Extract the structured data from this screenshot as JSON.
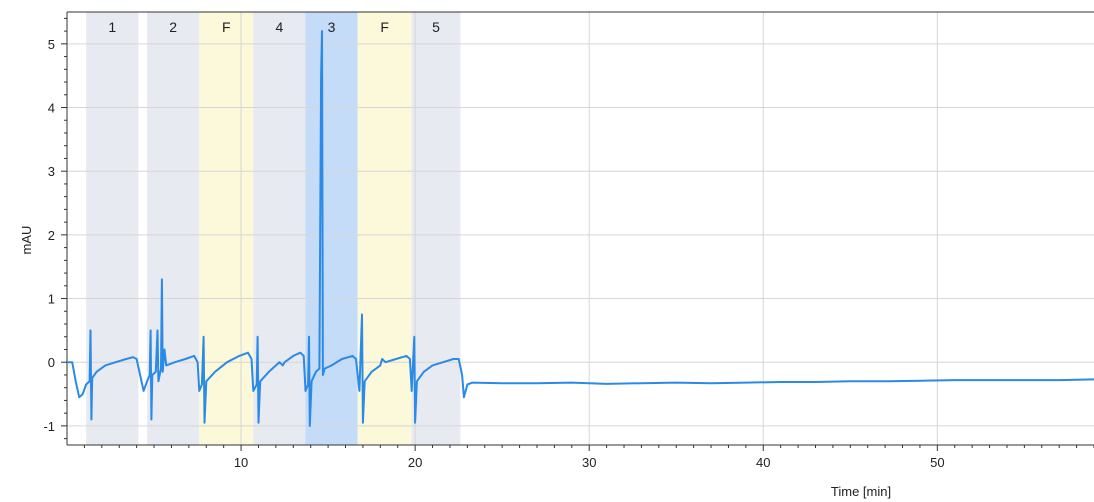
{
  "chart_data": {
    "type": "line",
    "xlabel": "Time [min]",
    "ylabel": "mAU",
    "xlim": [
      0,
      59
    ],
    "ylim": [
      -1.3,
      5.5
    ],
    "x_ticks": [
      10,
      20,
      30,
      40,
      50
    ],
    "y_ticks": [
      -1,
      0,
      1,
      2,
      3,
      4,
      5
    ],
    "grid": true,
    "colors": {
      "trace": "#2b8ae6",
      "region_gray": "#e8eaf2",
      "region_yellow": "#fbf9d9",
      "region_blue": "#c4dcf7",
      "grid": "#d6d6d6"
    },
    "regions": [
      {
        "label": "1",
        "x0": 1.1,
        "x1": 4.1,
        "color": "gray"
      },
      {
        "label": "2",
        "x0": 4.6,
        "x1": 7.6,
        "color": "gray"
      },
      {
        "label": "F",
        "x0": 7.6,
        "x1": 10.7,
        "color": "yellow"
      },
      {
        "label": "4",
        "x0": 10.7,
        "x1": 13.7,
        "color": "gray"
      },
      {
        "label": "3",
        "x0": 13.7,
        "x1": 16.7,
        "color": "blue"
      },
      {
        "label": "F",
        "x0": 16.7,
        "x1": 19.8,
        "color": "yellow"
      },
      {
        "label": "5",
        "x0": 19.8,
        "x1": 22.6,
        "color": "gray"
      }
    ],
    "series": [
      {
        "points": [
          [
            0.0,
            0.0
          ],
          [
            0.3,
            0.0
          ],
          [
            0.5,
            -0.3
          ],
          [
            0.7,
            -0.55
          ],
          [
            0.9,
            -0.5
          ],
          [
            1.1,
            -0.35
          ],
          [
            1.3,
            -0.3
          ],
          [
            1.35,
            0.5
          ],
          [
            1.4,
            -0.9
          ],
          [
            1.45,
            -0.25
          ],
          [
            1.7,
            -0.15
          ],
          [
            2.2,
            -0.05
          ],
          [
            2.8,
            0.0
          ],
          [
            3.4,
            0.05
          ],
          [
            3.8,
            0.08
          ],
          [
            4.0,
            0.05
          ],
          [
            4.2,
            -0.2
          ],
          [
            4.4,
            -0.45
          ],
          [
            4.6,
            -0.3
          ],
          [
            4.75,
            -0.2
          ],
          [
            4.8,
            0.5
          ],
          [
            4.85,
            -0.9
          ],
          [
            4.9,
            -0.2
          ],
          [
            5.1,
            -0.15
          ],
          [
            5.2,
            0.5
          ],
          [
            5.25,
            -0.3
          ],
          [
            5.4,
            -0.1
          ],
          [
            5.45,
            1.3
          ],
          [
            5.5,
            -0.15
          ],
          [
            5.6,
            0.2
          ],
          [
            5.7,
            -0.05
          ],
          [
            6.2,
            0.0
          ],
          [
            6.8,
            0.05
          ],
          [
            7.3,
            0.1
          ],
          [
            7.5,
            0.0
          ],
          [
            7.6,
            -0.45
          ],
          [
            7.75,
            -0.35
          ],
          [
            7.85,
            0.4
          ],
          [
            7.9,
            -0.95
          ],
          [
            8.0,
            -0.3
          ],
          [
            8.5,
            -0.15
          ],
          [
            9.2,
            0.0
          ],
          [
            9.9,
            0.1
          ],
          [
            10.4,
            0.15
          ],
          [
            10.6,
            0.05
          ],
          [
            10.7,
            -0.45
          ],
          [
            10.9,
            -0.35
          ],
          [
            10.95,
            0.4
          ],
          [
            11.0,
            -0.95
          ],
          [
            11.1,
            -0.3
          ],
          [
            11.6,
            -0.15
          ],
          [
            12.2,
            0.0
          ],
          [
            12.4,
            -0.05
          ],
          [
            12.5,
            0.0
          ],
          [
            13.0,
            0.1
          ],
          [
            13.4,
            0.15
          ],
          [
            13.6,
            0.1
          ],
          [
            13.7,
            -0.45
          ],
          [
            13.85,
            -0.35
          ],
          [
            13.9,
            0.4
          ],
          [
            13.95,
            -1.0
          ],
          [
            14.05,
            -0.3
          ],
          [
            14.3,
            -0.15
          ],
          [
            14.5,
            -0.1
          ],
          [
            14.6,
            4.5
          ],
          [
            14.65,
            5.2
          ],
          [
            14.7,
            -0.2
          ],
          [
            14.8,
            -0.1
          ],
          [
            15.2,
            -0.05
          ],
          [
            15.8,
            0.05
          ],
          [
            16.4,
            0.1
          ],
          [
            16.6,
            0.05
          ],
          [
            16.8,
            -0.45
          ],
          [
            16.95,
            0.75
          ],
          [
            17.0,
            -0.95
          ],
          [
            17.1,
            -0.3
          ],
          [
            17.5,
            -0.15
          ],
          [
            18.0,
            -0.05
          ],
          [
            18.1,
            0.05
          ],
          [
            18.3,
            0.0
          ],
          [
            18.9,
            0.05
          ],
          [
            19.5,
            0.1
          ],
          [
            19.7,
            0.05
          ],
          [
            19.8,
            -0.45
          ],
          [
            19.95,
            0.4
          ],
          [
            20.0,
            -0.95
          ],
          [
            20.1,
            -0.3
          ],
          [
            20.5,
            -0.15
          ],
          [
            21.0,
            -0.05
          ],
          [
            21.6,
            0.0
          ],
          [
            22.2,
            0.05
          ],
          [
            22.5,
            0.05
          ],
          [
            22.7,
            -0.2
          ],
          [
            22.8,
            -0.55
          ],
          [
            23.0,
            -0.35
          ],
          [
            23.3,
            -0.32
          ],
          [
            25.0,
            -0.33
          ],
          [
            27.0,
            -0.33
          ],
          [
            29.0,
            -0.32
          ],
          [
            31.0,
            -0.34
          ],
          [
            33.0,
            -0.33
          ],
          [
            35.0,
            -0.32
          ],
          [
            37.0,
            -0.33
          ],
          [
            39.0,
            -0.32
          ],
          [
            41.0,
            -0.31
          ],
          [
            43.0,
            -0.31
          ],
          [
            45.0,
            -0.3
          ],
          [
            47.0,
            -0.3
          ],
          [
            49.0,
            -0.29
          ],
          [
            51.0,
            -0.28
          ],
          [
            53.0,
            -0.28
          ],
          [
            55.0,
            -0.28
          ],
          [
            57.0,
            -0.28
          ],
          [
            59.0,
            -0.27
          ]
        ]
      }
    ]
  }
}
